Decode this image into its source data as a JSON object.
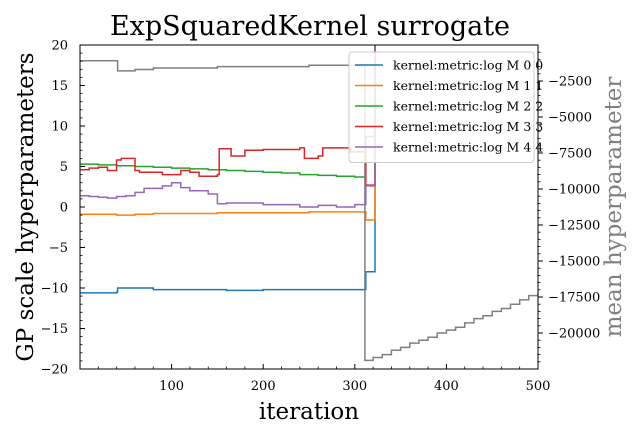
{
  "chart_data": {
    "type": "line",
    "title": "ExpSquaredKernel surrogate",
    "xlabel": "iteration",
    "ylabel": "GP scale hyperparameters",
    "y2label": "mean hyperparameter",
    "xlim": [
      0,
      500
    ],
    "ylim": [
      -20,
      20
    ],
    "y2lim": [
      -22500,
      0
    ],
    "xticks": [
      100,
      200,
      300,
      400,
      500
    ],
    "yticks": [
      -20,
      -15,
      -10,
      -5,
      0,
      5,
      10,
      15,
      20
    ],
    "y2ticks": [
      -20000,
      -17500,
      -15000,
      -12500,
      -10000,
      -7500,
      -5000,
      -2500
    ],
    "xtick_labels": [
      "100",
      "200",
      "300",
      "400",
      "500"
    ],
    "ytick_labels": [
      "−20",
      "−15",
      "−10",
      "−5",
      "0",
      "5",
      "10",
      "15",
      "20"
    ],
    "y2tick_labels": [
      "−20000",
      "−17500",
      "−15000",
      "−12500",
      "−10000",
      "−7500",
      "−5000",
      "−2500"
    ],
    "grid": false,
    "legend_position": "top-right",
    "series": [
      {
        "name": "kernel:metric:log M 0 0",
        "color": "#1f77b4",
        "x": [
          0,
          40,
          41,
          80,
          100,
          150,
          160,
          200,
          300,
          310,
          312,
          320,
          322
        ],
        "y": [
          -10.6,
          -10.5,
          -10.0,
          -10.2,
          -10.2,
          -10.2,
          -10.3,
          -10.2,
          -10.2,
          -10.2,
          -8.0,
          -8.0,
          20
        ]
      },
      {
        "name": "kernel:metric:log M 1 1",
        "color": "#ff7f0e",
        "x": [
          0,
          30,
          40,
          60,
          80,
          100,
          150,
          200,
          250,
          300,
          310,
          312,
          320,
          322
        ],
        "y": [
          -0.9,
          -0.9,
          -1.0,
          -0.9,
          -0.8,
          -0.8,
          -0.7,
          -0.7,
          -0.6,
          -0.6,
          -0.6,
          -1.6,
          -1.6,
          20
        ]
      },
      {
        "name": "kernel:metric:log M 2 2",
        "color": "#2ca02c",
        "x": [
          0,
          20,
          40,
          60,
          80,
          100,
          120,
          140,
          160,
          180,
          200,
          220,
          240,
          260,
          280,
          300,
          310,
          312,
          320,
          322
        ],
        "y": [
          5.3,
          5.2,
          5.1,
          5.0,
          4.9,
          4.8,
          4.7,
          4.6,
          4.5,
          4.4,
          4.3,
          4.2,
          4.0,
          3.9,
          3.8,
          3.7,
          3.7,
          8.7,
          8.7,
          20
        ]
      },
      {
        "name": "kernel:metric:log M 3 3",
        "color": "#d62728",
        "x": [
          0,
          10,
          20,
          30,
          40,
          45,
          60,
          65,
          90,
          100,
          110,
          120,
          130,
          140,
          150,
          152,
          160,
          165,
          180,
          200,
          240,
          245,
          260,
          265,
          290,
          295,
          310,
          312,
          320,
          322
        ],
        "y": [
          4.6,
          4.8,
          4.9,
          4.5,
          5.8,
          6.0,
          4.5,
          4.3,
          4.0,
          4.0,
          4.5,
          4.3,
          3.8,
          3.8,
          4.0,
          7.2,
          7.2,
          6.3,
          7.0,
          7.1,
          7.3,
          6.0,
          6.3,
          7.3,
          7.3,
          6.8,
          6.8,
          2.7,
          2.7,
          20
        ]
      },
      {
        "name": "kernel:metric:log M 4 4",
        "color": "#9467bd",
        "x": [
          0,
          10,
          20,
          30,
          40,
          50,
          60,
          70,
          80,
          90,
          100,
          110,
          120,
          140,
          150,
          160,
          200,
          240,
          260,
          280,
          300,
          310,
          312,
          320,
          322
        ],
        "y": [
          1.4,
          1.3,
          1.2,
          1.1,
          1.3,
          1.4,
          1.8,
          2.3,
          2.3,
          2.6,
          3.0,
          2.4,
          2.0,
          1.6,
          0.4,
          0.5,
          0.3,
          0.0,
          0.2,
          0.0,
          0.3,
          0.3,
          2.6,
          2.6,
          20
        ]
      },
      {
        "name": "mean",
        "axis": "right",
        "color": "#7f7f7f",
        "x": [
          0,
          40,
          41,
          50,
          60,
          80,
          100,
          150,
          200,
          250,
          310,
          311,
          320,
          330,
          340,
          350,
          360,
          370,
          380,
          390,
          400,
          410,
          420,
          430,
          440,
          450,
          460,
          470,
          480,
          490,
          500
        ],
        "y": [
          -1100,
          -1100,
          -1800,
          -1800,
          -1700,
          -1600,
          -1600,
          -1500,
          -1500,
          -1400,
          -1400,
          -21900,
          -21700,
          -21500,
          -21200,
          -21000,
          -20700,
          -20500,
          -20300,
          -20000,
          -19800,
          -19600,
          -19300,
          -19000,
          -18800,
          -18500,
          -18300,
          -18000,
          -17700,
          -17400,
          -17200
        ]
      }
    ]
  }
}
